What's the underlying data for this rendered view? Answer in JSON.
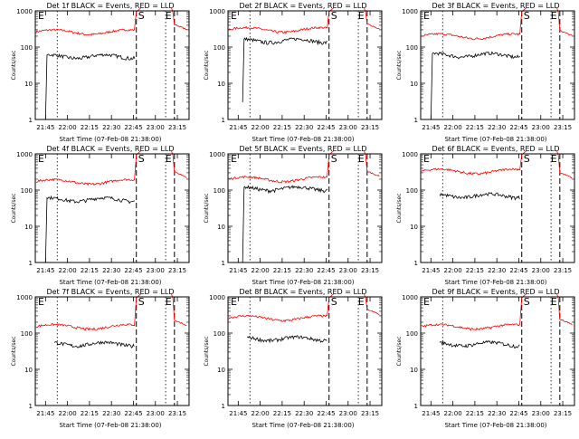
{
  "chart_data": [
    {
      "type": "line",
      "title": "Det 1f BLACK = Events, RED = LLD",
      "ylabel": "Counts/sec",
      "xlabel": "Start Time (07-Feb-08 21:38:00)",
      "x_ticks": [
        "21:45",
        "22:00",
        "22:15",
        "22:30",
        "22:45",
        "23:00",
        "23:15"
      ],
      "y_ticks": [
        "1",
        "10",
        "100",
        "1000"
      ],
      "ylim": [
        1,
        1000
      ],
      "y_scale": "log",
      "grid": false,
      "annotations": [
        "E",
        "S",
        "E"
      ],
      "series": [
        {
          "color": "#ff0000",
          "level": 260,
          "spike": true,
          "end_level": 280
        },
        {
          "color": "#000000",
          "level": 55,
          "spike": false,
          "start_tick": "21:45",
          "drop_to": 1
        }
      ]
    },
    {
      "type": "line",
      "title": "Det 2f BLACK = Events, RED = LLD",
      "ylabel": "Counts/sec",
      "xlabel": "Start Time (07-Feb-08 21:38:00)",
      "x_ticks": [
        "21:45",
        "22:00",
        "22:15",
        "22:30",
        "22:45",
        "23:00",
        "23:15"
      ],
      "y_ticks": [
        "1",
        "10",
        "100",
        "1000"
      ],
      "ylim": [
        1,
        1000
      ],
      "y_scale": "log",
      "grid": false,
      "annotations": [
        "E",
        "S",
        "E"
      ],
      "series": [
        {
          "color": "#ff0000",
          "level": 300,
          "spike": true,
          "end_level": 290
        },
        {
          "color": "#000000",
          "level": 150,
          "spike": false,
          "start_tick": "21:48",
          "drop_to": 3
        }
      ]
    },
    {
      "type": "line",
      "title": "Det 3f BLACK = Events, RED = LLD",
      "ylabel": "Counts/sec",
      "xlabel": "Start Time (07-Feb-08 21:38:00)",
      "x_ticks": [
        "21:45",
        "22:00",
        "22:15",
        "22:30",
        "22:45",
        "23:00",
        "23:15"
      ],
      "y_ticks": [
        "1",
        "10",
        "100",
        "1000"
      ],
      "ylim": [
        1,
        1000
      ],
      "y_scale": "log",
      "grid": false,
      "annotations": [
        "E",
        "S",
        "E"
      ],
      "series": [
        {
          "color": "#ff0000",
          "level": 200,
          "spike": true,
          "end_level": 190
        },
        {
          "color": "#000000",
          "level": 60,
          "spike": false,
          "start_tick": "21:45",
          "drop_to": 1
        }
      ]
    },
    {
      "type": "line",
      "title": "Det 4f BLACK = Events, RED = LLD",
      "ylabel": "Counts/sec",
      "xlabel": "Start Time (07-Feb-08 21:38:00)",
      "x_ticks": [
        "21:45",
        "22:00",
        "22:15",
        "22:30",
        "22:45",
        "23:00",
        "23:15"
      ],
      "y_ticks": [
        "1",
        "10",
        "100",
        "1000"
      ],
      "ylim": [
        1,
        1000
      ],
      "y_scale": "log",
      "grid": false,
      "annotations": [
        "E",
        "S",
        "E"
      ],
      "series": [
        {
          "color": "#ff0000",
          "level": 170,
          "spike": true,
          "end_level": 210
        },
        {
          "color": "#000000",
          "level": 55,
          "spike": false,
          "start_tick": "21:45",
          "drop_to": 1
        }
      ]
    },
    {
      "type": "line",
      "title": "Det 5f BLACK = Events, RED = LLD",
      "ylabel": "Counts/sec",
      "xlabel": "Start Time (07-Feb-08 21:38:00)",
      "x_ticks": [
        "21:45",
        "22:00",
        "22:15",
        "22:30",
        "22:45",
        "23:00",
        "23:15"
      ],
      "y_ticks": [
        "1",
        "10",
        "100",
        "1000"
      ],
      "ylim": [
        1,
        1000
      ],
      "y_scale": "log",
      "grid": false,
      "annotations": [
        "E",
        "S",
        "E"
      ],
      "series": [
        {
          "color": "#ff0000",
          "level": 200,
          "spike": true,
          "end_level": 220
        },
        {
          "color": "#000000",
          "level": 110,
          "spike": false,
          "start_tick": "21:48",
          "drop_to": 1
        }
      ]
    },
    {
      "type": "line",
      "title": "Det 6f BLACK = Events, RED = LLD",
      "ylabel": "Counts/sec",
      "xlabel": "Start Time (07-Feb-08 21:38:00)",
      "x_ticks": [
        "21:45",
        "22:00",
        "22:15",
        "22:30",
        "22:45",
        "23:00",
        "23:15"
      ],
      "y_ticks": [
        "1",
        "10",
        "100",
        "1000"
      ],
      "ylim": [
        1,
        1000
      ],
      "y_scale": "log",
      "grid": false,
      "annotations": [
        "E",
        "S",
        "E"
      ],
      "series": [
        {
          "color": "#ff0000",
          "level": 330,
          "spike": true,
          "end_level": 200
        },
        {
          "color": "#000000",
          "level": 70,
          "spike": false,
          "start_tick": "21:50",
          "drop_to": null
        }
      ]
    },
    {
      "type": "line",
      "title": "Det 7f BLACK = Events, RED = LLD",
      "ylabel": "Counts/sec",
      "xlabel": "Start Time (07-Feb-08 21:38:00)",
      "x_ticks": [
        "21:45",
        "22:00",
        "22:15",
        "22:30",
        "22:45",
        "23:00",
        "23:15"
      ],
      "y_ticks": [
        "1",
        "10",
        "100",
        "1000"
      ],
      "ylim": [
        1,
        1000
      ],
      "y_scale": "log",
      "grid": false,
      "annotations": [
        "E",
        "S",
        "E"
      ],
      "series": [
        {
          "color": "#ff0000",
          "level": 150,
          "spike": true,
          "end_level": 150
        },
        {
          "color": "#000000",
          "level": 50,
          "spike": false,
          "start_tick": "21:50",
          "drop_to": null
        }
      ]
    },
    {
      "type": "line",
      "title": "Det 8f BLACK = Events, RED = LLD",
      "ylabel": "Counts/sec",
      "xlabel": "Start Time (07-Feb-08 21:38:00)",
      "x_ticks": [
        "21:45",
        "22:00",
        "22:15",
        "22:30",
        "22:45",
        "23:00",
        "23:15"
      ],
      "y_ticks": [
        "1",
        "10",
        "100",
        "1000"
      ],
      "ylim": [
        1,
        1000
      ],
      "y_scale": "log",
      "grid": false,
      "annotations": [
        "E",
        "S",
        "E"
      ],
      "series": [
        {
          "color": "#ff0000",
          "level": 260,
          "spike": true,
          "end_level": 300
        },
        {
          "color": "#000000",
          "level": 70,
          "spike": false,
          "start_tick": "21:50",
          "drop_to": null
        }
      ]
    },
    {
      "type": "line",
      "title": "Det 9f BLACK = Events, RED = LLD",
      "ylabel": "Counts/sec",
      "xlabel": "Start Time (07-Feb-08 21:38:00)",
      "x_ticks": [
        "21:45",
        "22:00",
        "22:15",
        "22:30",
        "22:45",
        "23:00",
        "23:15"
      ],
      "y_ticks": [
        "1",
        "10",
        "100",
        "1000"
      ],
      "ylim": [
        1,
        1000
      ],
      "y_scale": "log",
      "grid": false,
      "annotations": [
        "E",
        "S",
        "E"
      ],
      "series": [
        {
          "color": "#ff0000",
          "level": 150,
          "spike": true,
          "end_level": 160
        },
        {
          "color": "#000000",
          "level": 50,
          "spike": false,
          "start_tick": "21:50",
          "drop_to": null
        }
      ]
    }
  ]
}
